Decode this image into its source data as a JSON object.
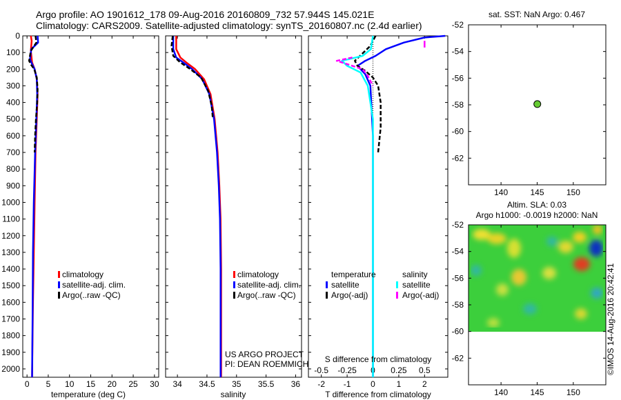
{
  "header": {
    "line1": "Argo profile: AO 1901612_178 09-Aug-2016 20160809_732 57.944S 145.021E",
    "line2": "Climatology: CARS2009. Satellite-adjusted climatology: synTS_20160807.nc (2.4d earlier)"
  },
  "credit_vertical": "©IMOS 14-Aug-2016 20:42:41",
  "project_note": [
    "US ARGO PROJECT",
    "PI: DEAN ROEMMICH"
  ],
  "colors": {
    "climatology": "#ff0000",
    "satellite": "#0000ff",
    "argo": "#000000",
    "salinity_satellite": "#00ffff",
    "salinity_argo": "#ff00ff",
    "marker": "#66cc33"
  },
  "chart_data": [
    {
      "id": "temperature",
      "type": "line",
      "xlabel": "temperature (deg C)",
      "ylabel": "",
      "xlim": [
        -1,
        31
      ],
      "ylim": [
        2050,
        0
      ],
      "xticks": [
        0,
        5,
        10,
        15,
        20,
        25,
        30
      ],
      "yticks": [
        0,
        100,
        200,
        300,
        400,
        500,
        600,
        700,
        800,
        900,
        1000,
        1100,
        1200,
        1300,
        1400,
        1500,
        1600,
        1700,
        1800,
        1900,
        2000
      ],
      "legend": [
        "climatology",
        "satellite-adj. clim.",
        "Argo(..raw -QC)"
      ],
      "series": [
        {
          "name": "climatology",
          "color": "#ff0000",
          "style": "solid",
          "x": [
            0.9,
            1.1,
            0.9,
            1.2,
            1.8,
            2.3,
            2.5,
            2.3,
            2.0,
            1.8,
            1.6,
            1.4,
            1.3,
            1.2
          ],
          "y": [
            0,
            30,
            90,
            160,
            200,
            260,
            350,
            500,
            700,
            1000,
            1300,
            1600,
            1800,
            2050
          ]
        },
        {
          "name": "satellite-adj. clim.",
          "color": "#0000ff",
          "style": "solid",
          "x": [
            2.5,
            2.6,
            1.0,
            0.7,
            1.2,
            1.8,
            2.3,
            2.4,
            2.2,
            1.9,
            1.6,
            1.4,
            1.3,
            1.2
          ],
          "y": [
            0,
            40,
            80,
            140,
            170,
            200,
            260,
            350,
            500,
            700,
            1000,
            1300,
            1700,
            2050
          ]
        },
        {
          "name": "Argo(..raw -QC)",
          "color": "#000000",
          "style": "dashed",
          "x": [
            2.0,
            2.2,
            0.9,
            0.5,
            1.0,
            1.7,
            2.3,
            2.5,
            2.4,
            2.1,
            1.9,
            1.8
          ],
          "y": [
            0,
            40,
            90,
            150,
            175,
            200,
            250,
            320,
            400,
            500,
            600,
            700
          ]
        }
      ]
    },
    {
      "id": "salinity",
      "type": "line",
      "xlabel": "salinity",
      "ylabel": "",
      "xlim": [
        33.8,
        36.1
      ],
      "ylim": [
        2050,
        0
      ],
      "xticks": [
        34,
        34.5,
        35,
        35.5,
        36
      ],
      "legend": [
        "climatology",
        "satellite-adj. clim.",
        "Argo(..raw -QC)"
      ],
      "series": [
        {
          "name": "climatology",
          "color": "#ff0000",
          "style": "solid",
          "x": [
            33.98,
            33.98,
            34.05,
            34.15,
            34.3,
            34.45,
            34.56,
            34.63,
            34.68,
            34.71,
            34.73,
            34.74,
            34.74,
            34.74
          ],
          "y": [
            0,
            80,
            130,
            160,
            200,
            260,
            350,
            500,
            700,
            900,
            1100,
            1400,
            1700,
            2050
          ]
        },
        {
          "name": "satellite-adj. clim.",
          "color": "#0000ff",
          "style": "solid",
          "x": [
            33.93,
            33.93,
            33.98,
            34.1,
            34.25,
            34.42,
            34.54,
            34.62,
            34.67,
            34.7,
            34.72,
            34.73,
            34.73,
            34.73
          ],
          "y": [
            0,
            80,
            130,
            160,
            200,
            260,
            350,
            500,
            700,
            900,
            1100,
            1400,
            1700,
            2050
          ]
        },
        {
          "name": "Argo(..raw -QC)",
          "color": "#000000",
          "style": "dashed",
          "x": [
            33.92,
            33.9,
            33.93,
            34.05,
            34.22,
            34.4,
            34.52,
            34.58,
            34.6
          ],
          "y": [
            0,
            60,
            120,
            160,
            200,
            250,
            330,
            420,
            500
          ]
        }
      ]
    },
    {
      "id": "difference",
      "type": "line",
      "xlabel": "T difference from climatology",
      "top_label": "S difference from climatology",
      "xlim": [
        -2.5,
        2.9
      ],
      "ylim": [
        2050,
        0
      ],
      "xticks": [
        -2,
        -1,
        0,
        1,
        2
      ],
      "sticks": [
        -0.5,
        -0.25,
        0,
        0.25,
        0.5
      ],
      "legend_temperature": [
        "temperature",
        "satellite",
        "Argo(-adj)"
      ],
      "legend_salinity": [
        "salinity",
        "satellite",
        "Argo(-adj)"
      ],
      "series": [
        {
          "name": "satellite",
          "group": "temperature",
          "color": "#0000ff",
          "style": "solid",
          "x": [
            2.8,
            2.0,
            1.2,
            0.5,
            0.1,
            -0.3,
            -0.6,
            -0.3,
            -0.1,
            0.0,
            0.0,
            0.0
          ],
          "y": [
            0,
            10,
            40,
            80,
            120,
            150,
            180,
            230,
            300,
            600,
            1200,
            2050
          ]
        },
        {
          "name": "Argo(-adj)",
          "group": "temperature",
          "color": "#000000",
          "style": "dashed",
          "x": [
            0.1,
            0.0,
            -0.1,
            -0.3,
            -0.5,
            -0.7,
            -0.6,
            -0.3,
            0.0,
            0.2,
            0.3,
            0.3,
            0.2
          ],
          "y": [
            0,
            30,
            60,
            90,
            120,
            150,
            180,
            210,
            250,
            300,
            400,
            550,
            700
          ]
        },
        {
          "name": "satellite",
          "group": "salinity",
          "color": "#00ffff",
          "style": "solid",
          "x": [
            0.0,
            -0.02,
            -0.1,
            -0.3,
            -0.25,
            -0.12,
            -0.05,
            0.0,
            0.0,
            0.0
          ],
          "y": [
            0,
            80,
            120,
            150,
            180,
            220,
            300,
            500,
            1200,
            2050
          ]
        },
        {
          "name": "Argo(-adj)",
          "group": "salinity",
          "color": "#ff00ff",
          "style": "dashed",
          "x": [
            -0.2,
            -0.35,
            -0.25,
            -0.1,
            -0.05,
            0.0
          ],
          "y": [
            130,
            150,
            170,
            200,
            240,
            300
          ]
        },
        {
          "name": "Argo(-adj)",
          "group": "salinity-upper",
          "color": "#ff00ff",
          "style": "solid",
          "x": [
            0.5,
            0.5
          ],
          "y": [
            30,
            70
          ]
        }
      ]
    },
    {
      "id": "sst-map",
      "type": "scatter",
      "title": "sat. SST: NaN Argo: 0.467",
      "xlim": [
        135.5,
        154.5
      ],
      "ylim": [
        -64,
        -52
      ],
      "xticks": [
        140,
        145,
        150
      ],
      "yticks": [
        -52,
        -54,
        -56,
        -58,
        -60,
        -62
      ],
      "points": [
        {
          "x": 145.021,
          "y": -57.944
        }
      ]
    },
    {
      "id": "sla-map",
      "type": "heatmap",
      "title": "Altim. SLA: 0.03",
      "subtitle": "Argo h1000: -0.0019 h2000: NaN",
      "xlim": [
        135.5,
        154.5
      ],
      "ylim": [
        -64,
        -52
      ],
      "xticks": [
        140,
        145,
        150
      ],
      "yticks": [
        -52,
        -54,
        -56,
        -58,
        -60,
        -62
      ],
      "data_extent": {
        "lat": [
          -60,
          -52
        ]
      }
    }
  ]
}
